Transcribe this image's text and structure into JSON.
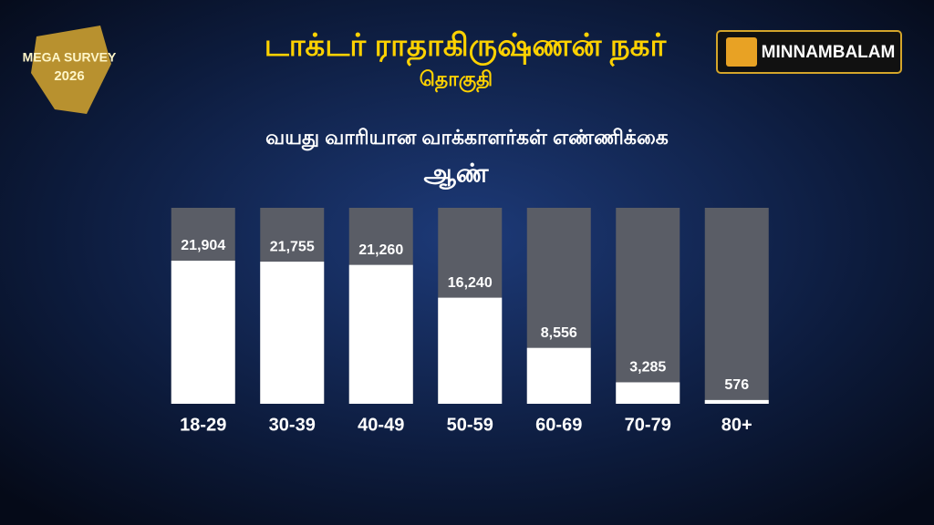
{
  "badge": {
    "line1": "MEGA SURVEY",
    "line2": "2026"
  },
  "logo": {
    "text": "MINNAMBALAM"
  },
  "header": {
    "title": "டாக்டர் ராதாகிருஷ்ணன் நகர்",
    "subtitle": "தொகுதி"
  },
  "chart_data": {
    "type": "bar",
    "title": "வயது வாரியான வாக்காளர்கள் எண்ணிக்கை",
    "subtitle": "ஆண்",
    "categories": [
      "18-29",
      "30-39",
      "40-49",
      "50-59",
      "60-69",
      "70-79",
      "80+"
    ],
    "values": [
      21904,
      21755,
      21260,
      16240,
      8556,
      3285,
      576
    ],
    "value_labels": [
      "21,904",
      "21,755",
      "21,260",
      "16,240",
      "8,556",
      "3,285",
      "576"
    ],
    "color": "#ffffff",
    "track_color": "#5a5d66",
    "ylim": [
      0,
      30000
    ]
  }
}
